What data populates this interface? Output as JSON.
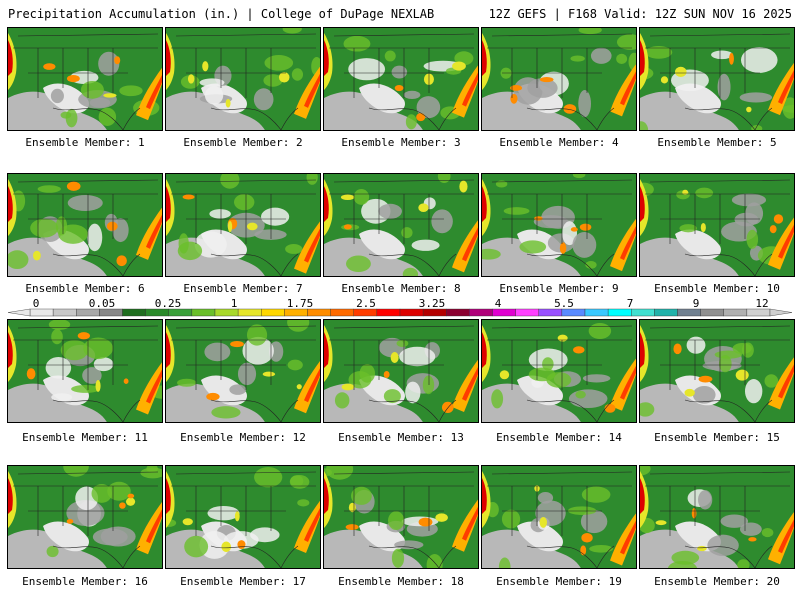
{
  "header": {
    "title_left": "Precipitation Accumulation (in.) | College of DuPage NEXLAB",
    "title_right": "12Z GEFS | F168 Valid: 12Z SUN NOV 16 2025"
  },
  "members": [
    {
      "label": "Ensemble Member: 1"
    },
    {
      "label": "Ensemble Member: 2"
    },
    {
      "label": "Ensemble Member: 3"
    },
    {
      "label": "Ensemble Member: 4"
    },
    {
      "label": "Ensemble Member: 5"
    },
    {
      "label": "Ensemble Member: 6"
    },
    {
      "label": "Ensemble Member: 7"
    },
    {
      "label": "Ensemble Member: 8"
    },
    {
      "label": "Ensemble Member: 9"
    },
    {
      "label": "Ensemble Member: 10"
    },
    {
      "label": "Ensemble Member: 11"
    },
    {
      "label": "Ensemble Member: 12"
    },
    {
      "label": "Ensemble Member: 13"
    },
    {
      "label": "Ensemble Member: 14"
    },
    {
      "label": "Ensemble Member: 15"
    },
    {
      "label": "Ensemble Member: 16"
    },
    {
      "label": "Ensemble Member: 17"
    },
    {
      "label": "Ensemble Member: 18"
    },
    {
      "label": "Ensemble Member: 19"
    },
    {
      "label": "Ensemble Member: 20"
    }
  ],
  "colorbar": {
    "labels": [
      "0",
      "0.05",
      "0.25",
      "1",
      "1.75",
      "2.5",
      "3.25",
      "4",
      "5.5",
      "7",
      "9",
      "12"
    ],
    "colors": [
      "#e8e8e8",
      "#c8c8c8",
      "#a8a8a8",
      "#888888",
      "#1f6e1f",
      "#2a8a2a",
      "#3aa03a",
      "#6abf2a",
      "#a8d82a",
      "#e6e62a",
      "#ffd700",
      "#ffb000",
      "#ff8c00",
      "#ff6a00",
      "#ff3c00",
      "#ff0000",
      "#dd0000",
      "#b40000",
      "#8b0030",
      "#b0007a",
      "#e000d0",
      "#ff40ff",
      "#9a50ff",
      "#5a8aff",
      "#3ac8ff",
      "#00ffff",
      "#40e0d0",
      "#20b2aa",
      "#708090",
      "#909090",
      "#b0b0b0",
      "#d0d0d0"
    ]
  }
}
